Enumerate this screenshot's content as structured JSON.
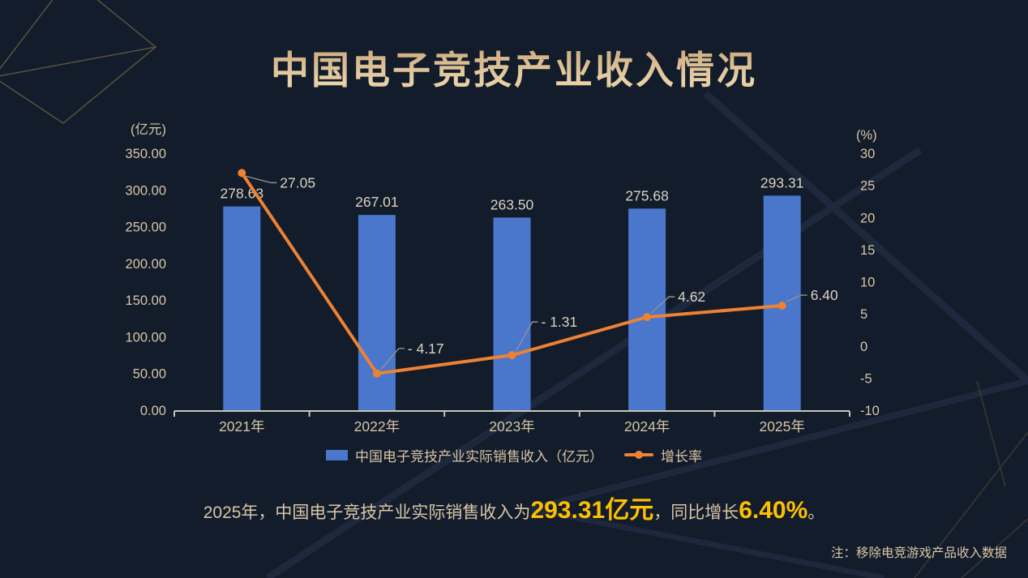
{
  "title": "中国电子竞技产业收入情况",
  "chart_data": {
    "type": "bar+line combo",
    "title": "中国电子竞技产业收入情况",
    "categories": [
      "2021年",
      "2022年",
      "2023年",
      "2024年",
      "2025年"
    ],
    "series": [
      {
        "name": "中国电子竞技产业实际销售收入（亿元）",
        "type": "bar",
        "axis": "left",
        "values": [
          278.63,
          267.01,
          263.5,
          275.68,
          293.31
        ],
        "labels": [
          "278.63",
          "267.01",
          "263.50",
          "275.68",
          "293.31"
        ]
      },
      {
        "name": "增长率",
        "type": "line",
        "axis": "right",
        "values": [
          27.05,
          -4.17,
          -1.31,
          4.62,
          6.4
        ],
        "labels": [
          "27.05",
          "- 4.17",
          "- 1.31",
          "4.62",
          "6.40"
        ]
      }
    ],
    "left_axis": {
      "unit": "(亿元)",
      "min": 0,
      "max": 350,
      "step": 50,
      "decimals": 2
    },
    "right_axis": {
      "unit": "(%)",
      "min": -10,
      "max": 30,
      "step": 5,
      "decimals": 0
    },
    "grid": false,
    "legend_position": "bottom"
  },
  "summary": {
    "prefix": "2025年，中国电子竞技产业实际销售收入为",
    "highlight_revenue": "293.31亿元",
    "middle": "，同比增长",
    "highlight_growth": "6.40%",
    "suffix": "。"
  },
  "note": "注：移除电竞游戏产品收入数据",
  "colors": {
    "background": "#121c2b",
    "bar": "#4a77cb",
    "line": "#ee8133",
    "axis_text": "#d8c5a6",
    "data_label": "#dcd2c0",
    "callout_line": "#8f9296",
    "axis_line": "#c8c4ba",
    "highlight": "#ffc000",
    "title_gold_top": "#c5a072",
    "title_gold_bottom": "#e9d2a8"
  }
}
